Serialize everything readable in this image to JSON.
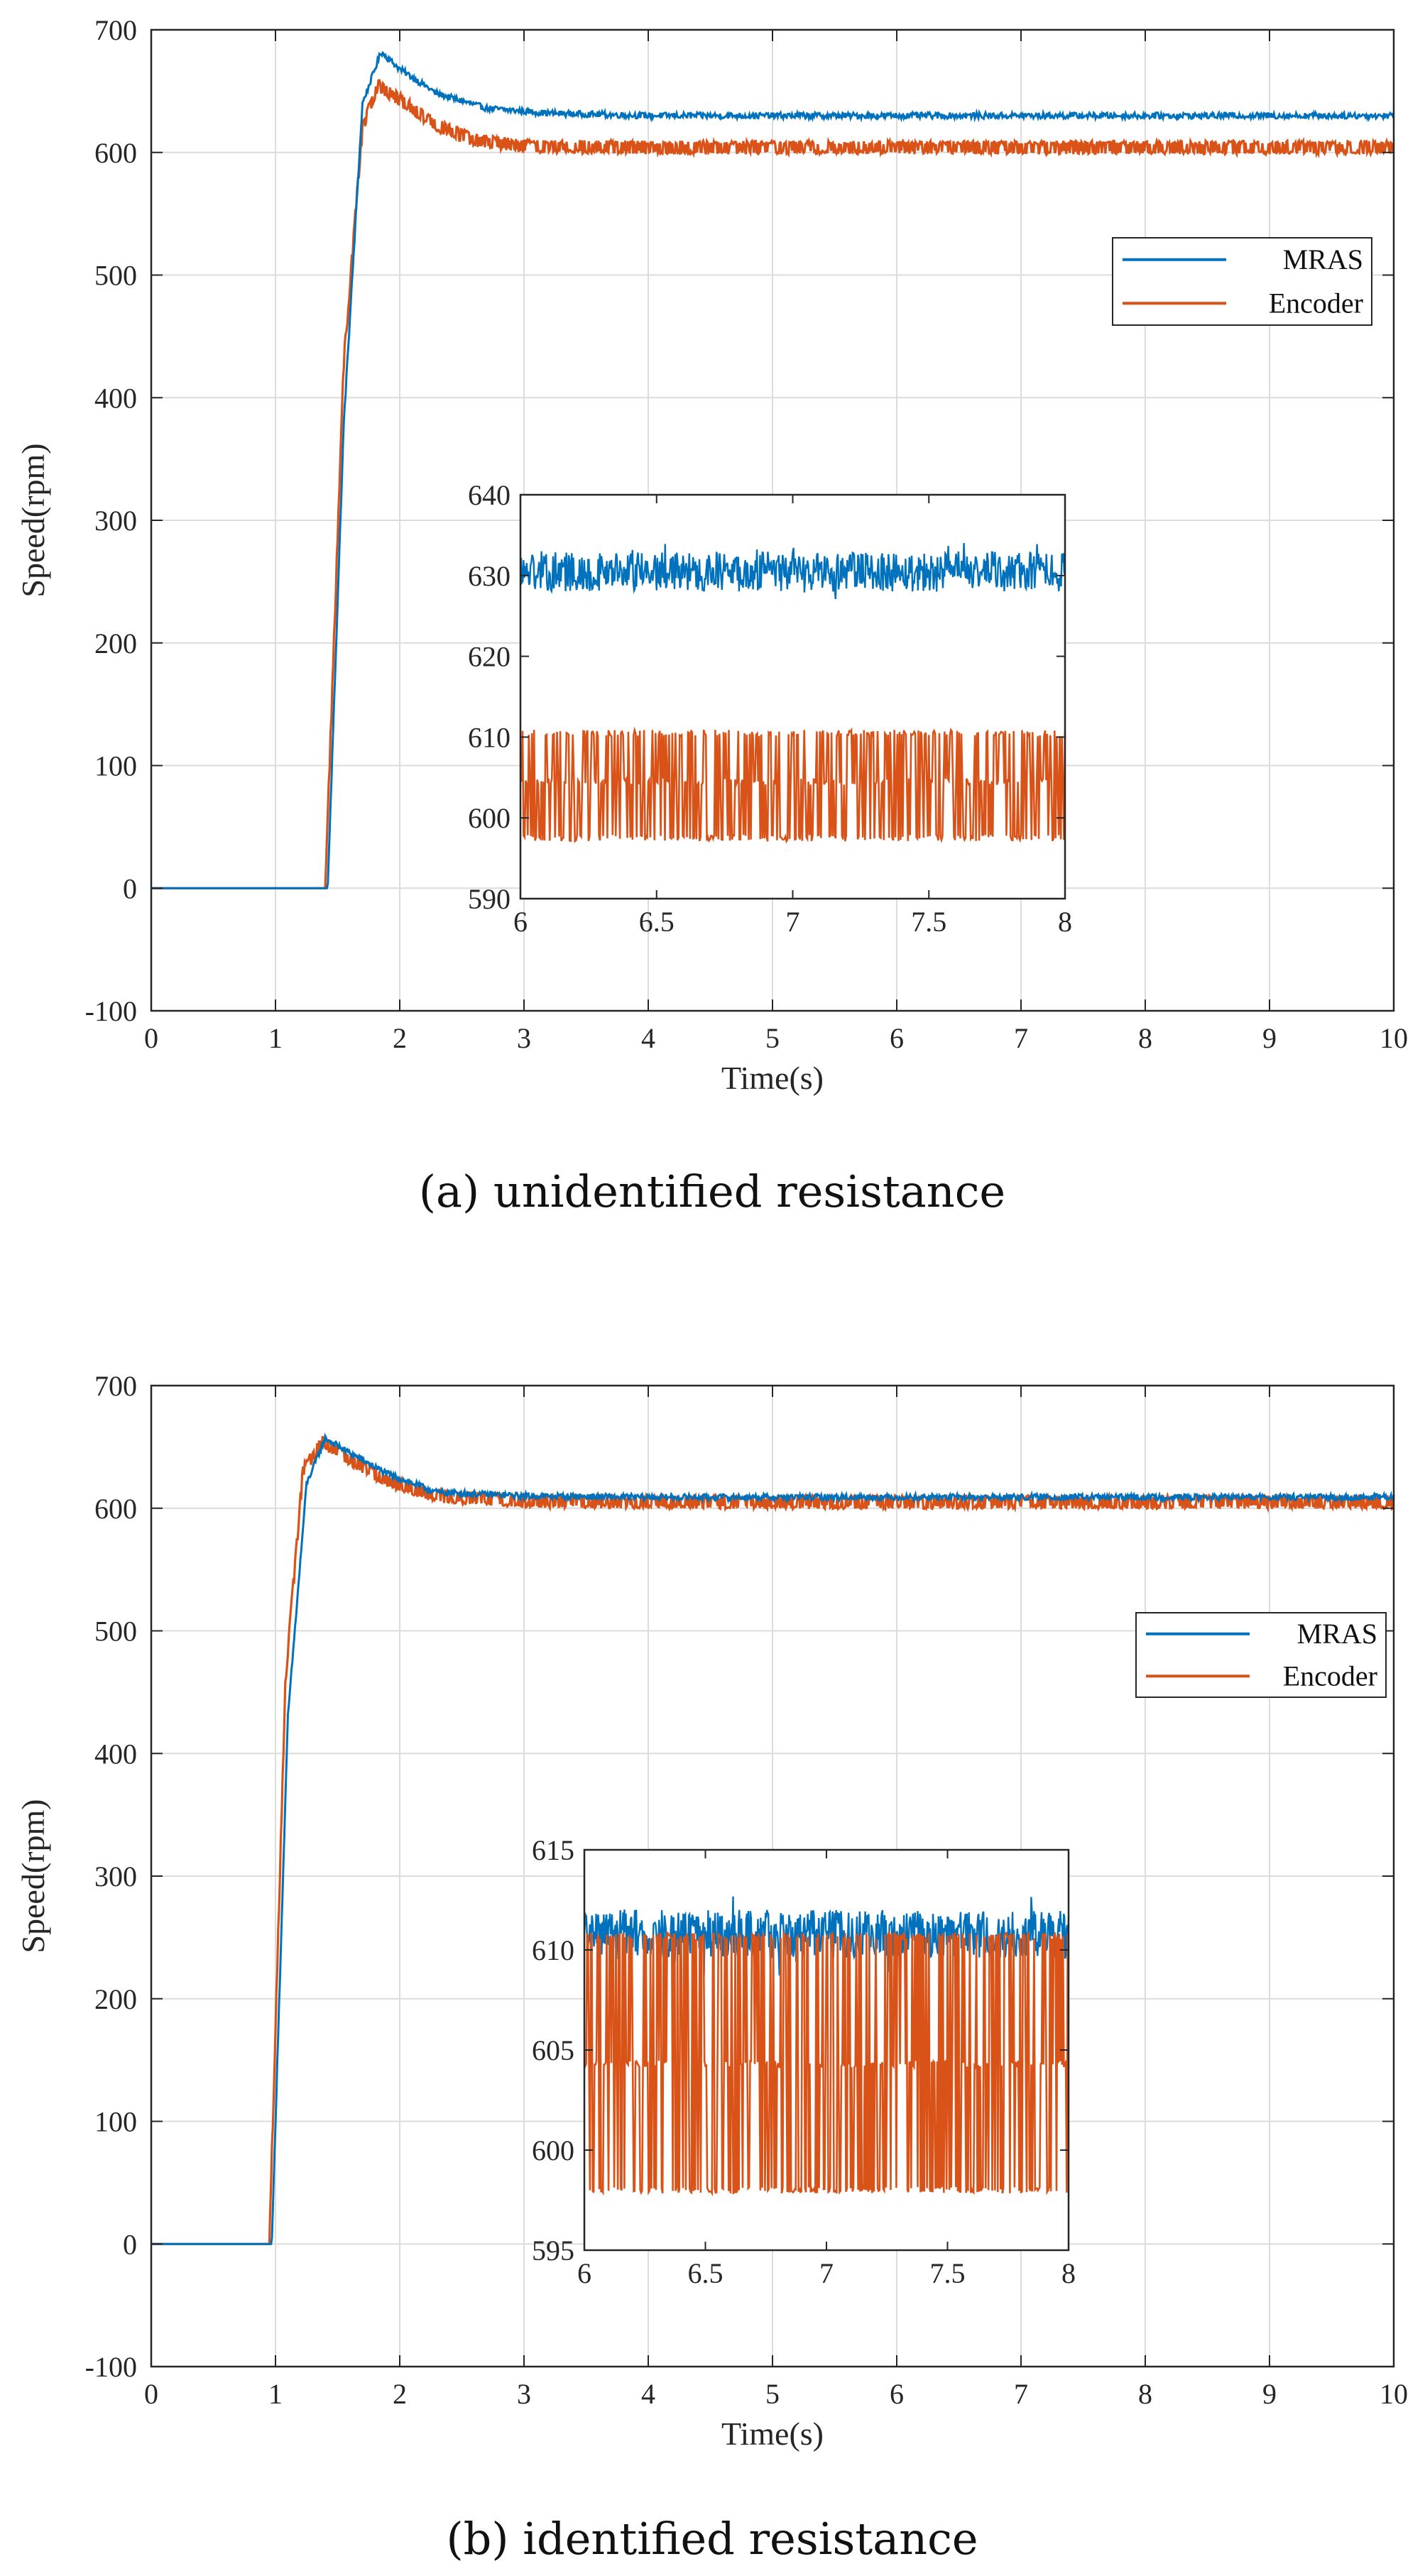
{
  "colors": {
    "mras": "#0072BD",
    "encoder": "#D95319",
    "grid": "#dcdcdc",
    "axis": "#262626"
  },
  "chart_data": [
    {
      "type": "line",
      "caption": "(a) unidentified resistance",
      "xlabel": "Time(s)",
      "ylabel": "Speed(rpm)",
      "xlim": [
        0,
        10
      ],
      "ylim": [
        -100,
        700
      ],
      "x_ticks": [
        "0",
        "1",
        "2",
        "3",
        "4",
        "5",
        "6",
        "7",
        "8",
        "9",
        "10"
      ],
      "y_ticks": [
        "-100",
        "0",
        "100",
        "200",
        "300",
        "400",
        "500",
        "600",
        "700"
      ],
      "grid": true,
      "legend_position": "top-right",
      "series": [
        {
          "name": "MRAS",
          "x": [
            0,
            1.42,
            1.55,
            1.7,
            1.85,
            2.0,
            2.3,
            2.7,
            3.2,
            4,
            6,
            8,
            10
          ],
          "y": [
            0,
            0,
            380,
            640,
            682,
            668,
            648,
            636,
            632,
            630,
            630,
            630,
            630
          ]
        },
        {
          "name": "Encoder",
          "x": [
            0,
            1.4,
            1.55,
            1.7,
            1.82,
            2.0,
            2.3,
            2.6,
            3.0,
            4,
            6,
            8,
            10
          ],
          "y": [
            0,
            0,
            430,
            620,
            655,
            643,
            622,
            610,
            605,
            604,
            604,
            604,
            604
          ]
        }
      ],
      "inset": {
        "xlim": [
          6,
          8
        ],
        "ylim": [
          590,
          640
        ],
        "x_ticks": [
          "6",
          "6.5",
          "7",
          "7.5",
          "8"
        ],
        "y_ticks": [
          "590",
          "600",
          "610",
          "620",
          "630",
          "640"
        ],
        "series": [
          {
            "name": "MRAS",
            "mean": 630.5,
            "noise": 2.5
          },
          {
            "name": "Encoder",
            "levels": [
              597.5,
              604.5,
              610.5
            ]
          }
        ]
      }
    },
    {
      "type": "line",
      "caption": "(b) identified resistance",
      "xlabel": "Time(s)",
      "ylabel": "Speed(rpm)",
      "xlim": [
        0,
        10
      ],
      "ylim": [
        -100,
        700
      ],
      "x_ticks": [
        "0",
        "1",
        "2",
        "3",
        "4",
        "5",
        "6",
        "7",
        "8",
        "9",
        "10"
      ],
      "y_ticks": [
        "-100",
        "0",
        "100",
        "200",
        "300",
        "400",
        "500",
        "600",
        "700"
      ],
      "grid": true,
      "legend_position": "top-right",
      "series": [
        {
          "name": "MRAS",
          "x": [
            0,
            0.97,
            1.1,
            1.25,
            1.4,
            1.6,
            1.9,
            2.3,
            3.0,
            4,
            6,
            8,
            10
          ],
          "y": [
            0,
            0,
            430,
            620,
            657,
            645,
            628,
            613,
            610,
            609,
            609,
            609,
            609
          ]
        },
        {
          "name": "Encoder",
          "x": [
            0,
            0.95,
            1.08,
            1.22,
            1.38,
            1.6,
            1.9,
            2.3,
            3.0,
            4,
            6,
            8,
            10
          ],
          "y": [
            0,
            0,
            460,
            630,
            655,
            640,
            622,
            610,
            606,
            605,
            605,
            605,
            605
          ]
        }
      ],
      "inset": {
        "xlim": [
          6,
          8
        ],
        "ylim": [
          595,
          615
        ],
        "x_ticks": [
          "6",
          "6.5",
          "7",
          "7.5",
          "8"
        ],
        "y_ticks": [
          "595",
          "600",
          "605",
          "610",
          "615"
        ],
        "series": [
          {
            "name": "MRAS",
            "mean": 610.8,
            "noise": 1.2
          },
          {
            "name": "Encoder",
            "levels": [
              598,
              604.3,
              610.7
            ]
          }
        ]
      }
    }
  ]
}
